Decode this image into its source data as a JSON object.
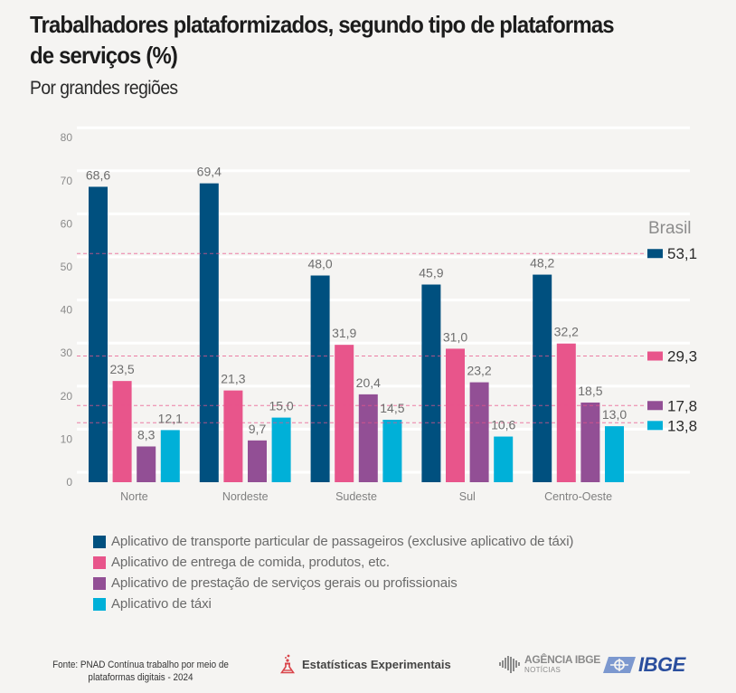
{
  "header": {
    "title_line1": "Trabalhadores plataformizados, segundo tipo de plataformas",
    "title_line2": "de serviços (%)",
    "subtitle": "Por grandes regiões"
  },
  "chart_data": {
    "type": "bar",
    "title": "Trabalhadores plataformizados, segundo tipo de plataformas de serviços (%)",
    "subtitle": "Por grandes regiões",
    "xlabel": "",
    "ylabel": "",
    "ylim": [
      0,
      80
    ],
    "yticks": [
      0,
      10,
      20,
      30,
      40,
      50,
      60,
      70,
      80
    ],
    "grid": true,
    "legend_position": "bottom",
    "categories": [
      "Norte",
      "Nordeste",
      "Sudeste",
      "Sul",
      "Centro-Oeste"
    ],
    "series": [
      {
        "name": "Aplicativo de transporte particular de passageiros (exclusive aplicativo de táxi)",
        "color": "#00507f",
        "values": [
          68.6,
          69.4,
          48.0,
          45.9,
          48.2
        ],
        "labels": [
          "68,6",
          "69,4",
          "48,0",
          "45,9",
          "48,2"
        ],
        "brasil": 53.1,
        "brasil_label": "53,1"
      },
      {
        "name": "Aplicativo de entrega de comida, produtos, etc.",
        "color": "#e8558b",
        "values": [
          23.5,
          21.3,
          31.9,
          31.0,
          32.2
        ],
        "labels": [
          "23,5",
          "21,3",
          "31,9",
          "31,0",
          "32,2"
        ],
        "brasil": 29.3,
        "brasil_label": "29,3"
      },
      {
        "name": "Aplicativo de prestação de serviços gerais ou profissionais",
        "color": "#924f95",
        "values": [
          8.3,
          9.7,
          20.4,
          23.2,
          18.5
        ],
        "labels": [
          "8,3",
          "9,7",
          "20,4",
          "23,2",
          "18,5"
        ],
        "brasil": 17.8,
        "brasil_label": "17,8"
      },
      {
        "name": "Aplicativo de táxi",
        "color": "#00b0d8",
        "values": [
          12.1,
          15.0,
          14.5,
          10.6,
          13.0
        ],
        "labels": [
          "12,1",
          "15,0",
          "14,5",
          "10,6",
          "13,0"
        ],
        "brasil": 13.8,
        "brasil_label": "13,8"
      }
    ],
    "reference_group": {
      "title": "Brasil",
      "line_style": "dashed",
      "line_color": "#e8558b"
    }
  },
  "legend": {
    "items": [
      {
        "label": "Aplicativo de transporte particular de passageiros (exclusive aplicativo de táxi)",
        "color": "#00507f"
      },
      {
        "label": "Aplicativo de entrega de comida, produtos, etc.",
        "color": "#e8558b"
      },
      {
        "label": "Aplicativo de prestação de serviços gerais ou profissionais",
        "color": "#924f95"
      },
      {
        "label": "Aplicativo de táxi",
        "color": "#00b0d8"
      }
    ]
  },
  "footer": {
    "source_line1": "Fonte: PNAD Contínua trabalho por meio de",
    "source_line2": "plataformas digitais - 2024",
    "experimental_label": "Estatísticas Experimentais",
    "agencia_top": "AGÊNCIA IBGE",
    "agencia_bottom": "NOTÍCIAS",
    "ibge_label": "IBGE",
    "experimental_icon": "flask-icon",
    "agencia_icon": "brazil-map-bars-icon",
    "ibge_icon": "ibge-emblem-icon"
  }
}
